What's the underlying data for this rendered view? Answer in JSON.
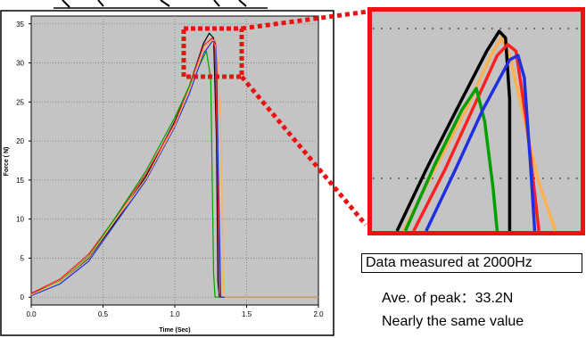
{
  "chart_data": {
    "type": "line",
    "title": "",
    "xlabel": "Time (Sec)",
    "ylabel": "Force ( N)",
    "xlim": [
      0,
      2.0
    ],
    "ylim": [
      -1,
      36
    ],
    "x_ticks": [
      0.0,
      0.5,
      1.0,
      1.5,
      2.0
    ],
    "x_tick_labels": [
      "0.0",
      "0.5",
      "1.0",
      "1.5",
      "2.0"
    ],
    "y_ticks": [
      0,
      5,
      10,
      15,
      20,
      25,
      30,
      35
    ],
    "y_tick_labels": [
      "0",
      "5",
      "10",
      "15",
      "20",
      "25",
      "30",
      "35"
    ],
    "grid": true,
    "series": [
      {
        "color": "#000000",
        "points": [
          [
            0,
            0.4
          ],
          [
            0.2,
            2
          ],
          [
            0.4,
            5
          ],
          [
            0.6,
            10
          ],
          [
            0.8,
            15.5
          ],
          [
            1.0,
            22.5
          ],
          [
            1.1,
            27
          ],
          [
            1.2,
            32.5
          ],
          [
            1.24,
            33.8
          ],
          [
            1.27,
            33.2
          ],
          [
            1.29,
            20
          ],
          [
            1.3,
            2
          ],
          [
            1.31,
            0
          ],
          [
            2.0,
            0
          ]
        ]
      },
      {
        "color": "#ff2020",
        "points": [
          [
            0,
            0.5
          ],
          [
            0.2,
            2.3
          ],
          [
            0.4,
            5.5
          ],
          [
            0.6,
            10.5
          ],
          [
            0.8,
            15.8
          ],
          [
            1.0,
            22.3
          ],
          [
            1.1,
            27
          ],
          [
            1.2,
            32.2
          ],
          [
            1.26,
            33.2
          ],
          [
            1.28,
            32
          ],
          [
            1.3,
            15
          ],
          [
            1.31,
            0.5
          ],
          [
            1.32,
            0
          ],
          [
            2.0,
            0
          ]
        ]
      },
      {
        "color": "#00a000",
        "points": [
          [
            0,
            0.3
          ],
          [
            0.2,
            2.1
          ],
          [
            0.4,
            5.2
          ],
          [
            0.6,
            10.6
          ],
          [
            0.8,
            16.2
          ],
          [
            1.0,
            23
          ],
          [
            1.1,
            27
          ],
          [
            1.18,
            30
          ],
          [
            1.22,
            31.5
          ],
          [
            1.25,
            28
          ],
          [
            1.27,
            3
          ],
          [
            1.28,
            0
          ],
          [
            2.0,
            0
          ]
        ]
      },
      {
        "color": "#2030e0",
        "points": [
          [
            0,
            0.2
          ],
          [
            0.2,
            1.7
          ],
          [
            0.4,
            4.6
          ],
          [
            0.6,
            9.8
          ],
          [
            0.8,
            15
          ],
          [
            1.0,
            21.8
          ],
          [
            1.1,
            26
          ],
          [
            1.2,
            31.2
          ],
          [
            1.27,
            33
          ],
          [
            1.29,
            32.2
          ],
          [
            1.3,
            19
          ],
          [
            1.32,
            0
          ],
          [
            2.0,
            0
          ]
        ]
      },
      {
        "color": "#ffb050",
        "points": [
          [
            0,
            0.3
          ],
          [
            0.2,
            2
          ],
          [
            0.4,
            5.1
          ],
          [
            0.6,
            10.2
          ],
          [
            0.8,
            15.2
          ],
          [
            1.0,
            22
          ],
          [
            1.1,
            26.5
          ],
          [
            1.2,
            31.5
          ],
          [
            1.25,
            32.8
          ],
          [
            1.29,
            33
          ],
          [
            1.32,
            22
          ],
          [
            1.34,
            0.5
          ],
          [
            1.35,
            0
          ],
          [
            2.0,
            0
          ]
        ]
      }
    ]
  },
  "inset": {
    "caption": "Data measured at 2000Hz",
    "lines": [
      {
        "color": "#ffb050",
        "points": [
          [
            0.15,
            1.0
          ],
          [
            0.3,
            0.72
          ],
          [
            0.45,
            0.45
          ],
          [
            0.57,
            0.2
          ],
          [
            0.62,
            0.12
          ],
          [
            0.66,
            0.2
          ],
          [
            0.72,
            0.45
          ],
          [
            0.8,
            0.78
          ],
          [
            0.88,
            1.0
          ]
        ]
      },
      {
        "color": "#000000",
        "points": [
          [
            0.12,
            1.0
          ],
          [
            0.26,
            0.72
          ],
          [
            0.42,
            0.42
          ],
          [
            0.55,
            0.18
          ],
          [
            0.61,
            0.09
          ],
          [
            0.64,
            0.12
          ],
          [
            0.66,
            0.4
          ],
          [
            0.66,
            1.0
          ]
        ]
      },
      {
        "color": "#ff2020",
        "points": [
          [
            0.2,
            1.0
          ],
          [
            0.35,
            0.72
          ],
          [
            0.48,
            0.45
          ],
          [
            0.6,
            0.2
          ],
          [
            0.65,
            0.15
          ],
          [
            0.69,
            0.18
          ],
          [
            0.74,
            0.5
          ],
          [
            0.8,
            1.0
          ]
        ]
      },
      {
        "color": "#00a000",
        "points": [
          [
            0.16,
            1.0
          ],
          [
            0.3,
            0.7
          ],
          [
            0.43,
            0.45
          ],
          [
            0.5,
            0.35
          ],
          [
            0.54,
            0.5
          ],
          [
            0.58,
            0.8
          ],
          [
            0.6,
            1.0
          ]
        ]
      },
      {
        "color": "#2030e0",
        "points": [
          [
            0.26,
            1.0
          ],
          [
            0.4,
            0.72
          ],
          [
            0.53,
            0.45
          ],
          [
            0.66,
            0.22
          ],
          [
            0.7,
            0.2
          ],
          [
            0.73,
            0.3
          ],
          [
            0.76,
            0.7
          ],
          [
            0.78,
            1.0
          ]
        ]
      }
    ]
  },
  "notes": {
    "peak": "Ave. of peak：33.2N",
    "same": "Nearly the same value"
  },
  "colors": {
    "plot_bg": "#c4c4c4",
    "highlight": "#ee1111",
    "grid": "#7a7a7a"
  }
}
